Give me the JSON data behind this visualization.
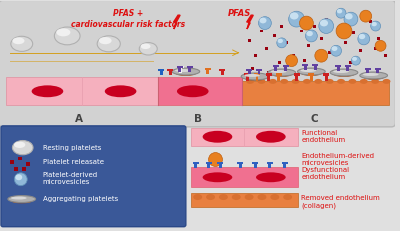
{
  "bg_color": "#e0e0e0",
  "main_panel_bg": "#d0d0d0",
  "blue_legend_bg": "#3a5898",
  "pink_light": "#f5b0be",
  "pink_medium": "#f07090",
  "orange_bar": "#e88040",
  "red_dark": "#c80020",
  "gray_platelet_fill": "#c8c8c8",
  "gray_platelet_ec": "#999999",
  "white_platelet": "#f0f0f0",
  "blue_micro": "#90b8d8",
  "blue_micro_inner": "#c8e0f0",
  "orange_micro": "#e88020",
  "purple": "#6040a0",
  "crimson": "#c01030",
  "lightning_color": "#dd1010",
  "label_A": "A",
  "label_B": "B",
  "label_C": "C",
  "text_pfas_cv": "PFAS +\ncardiovascular risk factors",
  "text_pfas": "PFAS",
  "legend_left": [
    "Resting platelets",
    "Platelet releasate",
    "Platelet-derived\nmicrovesicles",
    "Aggregating platelets"
  ],
  "legend_right": [
    "Functional\nendothelium",
    "Endothelium-derived\nmicrovesicles",
    "Dysfunctional\nendothelium",
    "Removed endothelium\n(collagen)"
  ],
  "text_color_red": "#dd1010",
  "text_color_white": "#ffffff",
  "text_color_dark": "#333333",
  "receptor_blue": "#2060c0",
  "receptor_red": "#cc2020",
  "receptor_white": "#f0f0f0",
  "receptor_orange": "#e07020",
  "small_dot_color": "#990010"
}
